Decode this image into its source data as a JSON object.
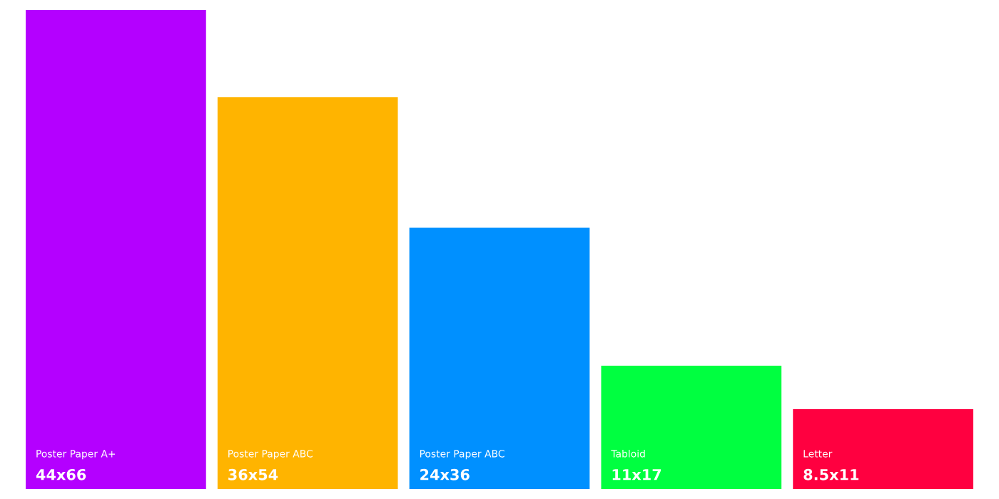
{
  "chart_data": {
    "type": "bar",
    "categories": [
      "Poster Paper A+",
      "Poster Paper ABC",
      "Poster Paper ABC",
      "Tabloid",
      "Letter"
    ],
    "values": [
      66,
      54,
      36,
      17,
      11
    ],
    "value_labels": [
      "44x66",
      "36x54",
      "24x36",
      "11x17",
      "8.5x11"
    ],
    "colors": [
      "#b400ff",
      "#ffb400",
      "#0090ff",
      "#00ff40",
      "#ff0040"
    ]
  }
}
